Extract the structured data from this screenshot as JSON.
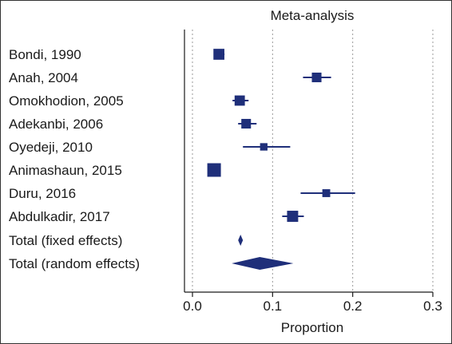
{
  "chart_data": {
    "type": "forest",
    "title": "Meta-analysis",
    "xlabel": "Proportion",
    "xlim": [
      0.0,
      0.3
    ],
    "xticks": [
      0.0,
      0.1,
      0.2,
      0.3
    ],
    "xtick_labels": [
      "0.0",
      "0.1",
      "0.2",
      "0.3"
    ],
    "grid": "vertical dotted",
    "studies": [
      {
        "label": "Bondi, 1990",
        "estimate": 0.033,
        "ci": [
          0.028,
          0.04
        ],
        "weight": 0.7
      },
      {
        "label": "Anah, 2004",
        "estimate": 0.155,
        "ci": [
          0.138,
          0.173
        ],
        "weight": 0.55
      },
      {
        "label": "Omokhodion, 2005",
        "estimate": 0.059,
        "ci": [
          0.05,
          0.07
        ],
        "weight": 0.62
      },
      {
        "label": "Adekanbi, 2006",
        "estimate": 0.067,
        "ci": [
          0.057,
          0.08
        ],
        "weight": 0.55
      },
      {
        "label": "Oyedeji, 2010",
        "estimate": 0.089,
        "ci": [
          0.063,
          0.122
        ],
        "weight": 0.3
      },
      {
        "label": "Animashaun, 2015",
        "estimate": 0.027,
        "ci": [
          0.022,
          0.033
        ],
        "weight": 1.0
      },
      {
        "label": "Duru, 2016",
        "estimate": 0.167,
        "ci": [
          0.135,
          0.203
        ],
        "weight": 0.35
      },
      {
        "label": "Abdulkadir, 2017",
        "estimate": 0.125,
        "ci": [
          0.112,
          0.139
        ],
        "weight": 0.72
      }
    ],
    "pooled": [
      {
        "label": "Total (fixed effects)",
        "estimate": 0.06,
        "ci": [
          0.057,
          0.063
        ]
      },
      {
        "label": "Total (random effects)",
        "estimate": 0.084,
        "ci": [
          0.049,
          0.126
        ]
      }
    ],
    "colors": {
      "marker": "#1f2f7a",
      "grid": "#9a9a9a",
      "axis": "#1a1a1a"
    }
  }
}
